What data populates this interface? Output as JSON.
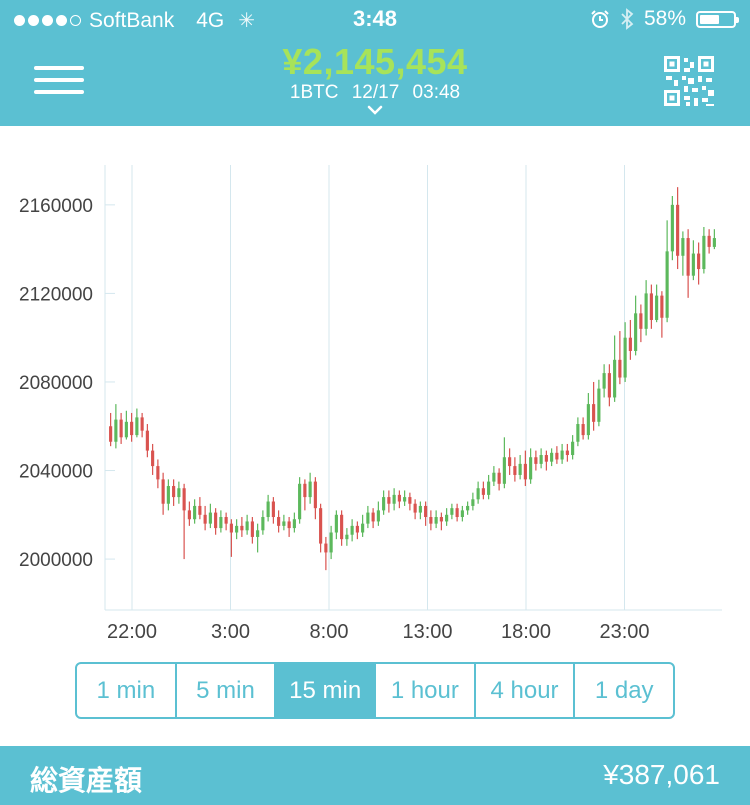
{
  "status_bar": {
    "carrier": "SoftBank",
    "network": "4G",
    "time": "3:48",
    "battery": "58%",
    "battery_level": 0.58
  },
  "header": {
    "price": "¥2,145,454",
    "unit": "1BTC",
    "datetime": "12/17 03:48",
    "colors": {
      "bar": "#5bc0d2",
      "price": "#a7e35a"
    }
  },
  "chart_data": {
    "type": "candlestick",
    "x_tick_labels": [
      "22:00",
      "3:00",
      "8:00",
      "13:00",
      "18:00",
      "23:00"
    ],
    "y_tick_labels": [
      "2000000",
      "2040000",
      "2080000",
      "2120000",
      "2160000"
    ],
    "ylim": [
      1977000,
      2178000
    ],
    "grid": "vertical",
    "up_color": "#5cb85c",
    "down_color": "#d9534f",
    "candles": [
      [
        2060000,
        2053000,
        2066000,
        2051000
      ],
      [
        2053000,
        2063000,
        2070000,
        2050000
      ],
      [
        2063000,
        2055000,
        2066000,
        2052000
      ],
      [
        2055000,
        2062000,
        2067000,
        2054000
      ],
      [
        2062000,
        2056000,
        2066000,
        2053000
      ],
      [
        2056000,
        2064000,
        2068000,
        2055000
      ],
      [
        2064000,
        2058000,
        2066000,
        2055000
      ],
      [
        2058000,
        2049000,
        2061000,
        2046000
      ],
      [
        2049000,
        2042000,
        2052000,
        2038000
      ],
      [
        2042000,
        2036000,
        2045000,
        2032000
      ],
      [
        2036000,
        2025000,
        2039000,
        2020000
      ],
      [
        2025000,
        2033000,
        2036000,
        2022000
      ],
      [
        2033000,
        2028000,
        2036000,
        2024000
      ],
      [
        2028000,
        2032000,
        2035000,
        2025000
      ],
      [
        2032000,
        2022000,
        2034000,
        2000000
      ],
      [
        2022000,
        2018000,
        2026000,
        2015000
      ],
      [
        2018000,
        2024000,
        2027000,
        2016000
      ],
      [
        2024000,
        2020000,
        2028000,
        2018000
      ],
      [
        2020000,
        2016000,
        2024000,
        2013000
      ],
      [
        2016000,
        2021000,
        2025000,
        2014000
      ],
      [
        2021000,
        2014000,
        2023000,
        2011000
      ],
      [
        2014000,
        2019000,
        2022000,
        2012000
      ],
      [
        2019000,
        2016000,
        2021000,
        2013000
      ],
      [
        2016000,
        2012000,
        2018000,
        2001000
      ],
      [
        2012000,
        2015000,
        2018000,
        2009000
      ],
      [
        2015000,
        2013000,
        2019000,
        2010000
      ],
      [
        2013000,
        2017000,
        2020000,
        2011000
      ],
      [
        2017000,
        2010000,
        2019000,
        2007000
      ],
      [
        2010000,
        2013000,
        2016000,
        2003000
      ],
      [
        2013000,
        2019000,
        2022000,
        2011000
      ],
      [
        2019000,
        2026000,
        2029000,
        2017000
      ],
      [
        2026000,
        2019000,
        2028000,
        2016000
      ],
      [
        2019000,
        2015000,
        2022000,
        2012000
      ],
      [
        2015000,
        2017000,
        2020000,
        2013000
      ],
      [
        2017000,
        2014000,
        2019000,
        2010000
      ],
      [
        2014000,
        2018000,
        2021000,
        2012000
      ],
      [
        2018000,
        2034000,
        2037000,
        2016000
      ],
      [
        2034000,
        2028000,
        2036000,
        2022000
      ],
      [
        2028000,
        2035000,
        2039000,
        2025000
      ],
      [
        2035000,
        2023000,
        2037000,
        2018000
      ],
      [
        2023000,
        2007000,
        2025000,
        2003000
      ],
      [
        2007000,
        2003000,
        2010000,
        1995000
      ],
      [
        2003000,
        2012000,
        2015000,
        2000000
      ],
      [
        2012000,
        2020000,
        2022000,
        2009000
      ],
      [
        2020000,
        2009000,
        2022000,
        2006000
      ],
      [
        2009000,
        2011000,
        2014000,
        2006000
      ],
      [
        2011000,
        2015000,
        2018000,
        2008000
      ],
      [
        2015000,
        2012000,
        2017000,
        2009000
      ],
      [
        2012000,
        2016000,
        2020000,
        2010000
      ],
      [
        2016000,
        2021000,
        2024000,
        2014000
      ],
      [
        2021000,
        2017000,
        2023000,
        2014000
      ],
      [
        2017000,
        2022000,
        2026000,
        2015000
      ],
      [
        2022000,
        2028000,
        2031000,
        2020000
      ],
      [
        2028000,
        2025000,
        2031000,
        2021000
      ],
      [
        2025000,
        2029000,
        2032000,
        2022000
      ],
      [
        2029000,
        2026000,
        2031000,
        2023000
      ],
      [
        2026000,
        2028000,
        2031000,
        2024000
      ],
      [
        2028000,
        2025000,
        2030000,
        2022000
      ],
      [
        2025000,
        2021000,
        2027000,
        2018000
      ],
      [
        2021000,
        2024000,
        2026000,
        2018000
      ],
      [
        2024000,
        2019000,
        2026000,
        2015000
      ],
      [
        2019000,
        2016000,
        2022000,
        2013000
      ],
      [
        2016000,
        2019000,
        2022000,
        2014000
      ],
      [
        2019000,
        2017000,
        2021000,
        2013000
      ],
      [
        2017000,
        2020000,
        2023000,
        2015000
      ],
      [
        2020000,
        2023000,
        2025000,
        2018000
      ],
      [
        2023000,
        2019000,
        2025000,
        2017000
      ],
      [
        2019000,
        2022000,
        2024000,
        2017000
      ],
      [
        2022000,
        2024000,
        2026000,
        2020000
      ],
      [
        2024000,
        2027000,
        2030000,
        2022000
      ],
      [
        2027000,
        2032000,
        2035000,
        2025000
      ],
      [
        2032000,
        2029000,
        2035000,
        2027000
      ],
      [
        2029000,
        2035000,
        2038000,
        2027000
      ],
      [
        2035000,
        2039000,
        2042000,
        2033000
      ],
      [
        2039000,
        2034000,
        2041000,
        2031000
      ],
      [
        2034000,
        2046000,
        2055000,
        2032000
      ],
      [
        2046000,
        2042000,
        2050000,
        2038000
      ],
      [
        2042000,
        2038000,
        2046000,
        2035000
      ],
      [
        2038000,
        2043000,
        2047000,
        2036000
      ],
      [
        2043000,
        2036000,
        2049000,
        2033000
      ],
      [
        2036000,
        2046000,
        2050000,
        2034000
      ],
      [
        2046000,
        2043000,
        2049000,
        2040000
      ],
      [
        2043000,
        2047000,
        2050000,
        2041000
      ],
      [
        2047000,
        2044000,
        2049000,
        2040000
      ],
      [
        2044000,
        2048000,
        2050000,
        2042000
      ],
      [
        2048000,
        2045000,
        2051000,
        2043000
      ],
      [
        2045000,
        2049000,
        2052000,
        2043000
      ],
      [
        2049000,
        2047000,
        2052000,
        2044000
      ],
      [
        2047000,
        2053000,
        2056000,
        2045000
      ],
      [
        2053000,
        2061000,
        2064000,
        2051000
      ],
      [
        2061000,
        2056000,
        2064000,
        2054000
      ],
      [
        2056000,
        2070000,
        2075000,
        2054000
      ],
      [
        2070000,
        2062000,
        2080000,
        2058000
      ],
      [
        2062000,
        2077000,
        2081000,
        2060000
      ],
      [
        2077000,
        2084000,
        2088000,
        2073000
      ],
      [
        2084000,
        2073000,
        2088000,
        2069000
      ],
      [
        2073000,
        2090000,
        2101000,
        2071000
      ],
      [
        2090000,
        2082000,
        2103000,
        2079000
      ],
      [
        2082000,
        2100000,
        2107000,
        2080000
      ],
      [
        2100000,
        2094000,
        2108000,
        2090000
      ],
      [
        2094000,
        2111000,
        2119000,
        2092000
      ],
      [
        2111000,
        2104000,
        2115000,
        2098000
      ],
      [
        2104000,
        2120000,
        2126000,
        2101000
      ],
      [
        2120000,
        2108000,
        2124000,
        2104000
      ],
      [
        2108000,
        2119000,
        2124000,
        2107000
      ],
      [
        2119000,
        2109000,
        2121000,
        2100000
      ],
      [
        2109000,
        2139000,
        2153000,
        2107000
      ],
      [
        2139000,
        2160000,
        2164000,
        2135000
      ],
      [
        2160000,
        2137000,
        2168000,
        2131000
      ],
      [
        2137000,
        2145000,
        2148000,
        2128000
      ],
      [
        2145000,
        2128000,
        2149000,
        2118000
      ],
      [
        2128000,
        2138000,
        2144000,
        2126000
      ],
      [
        2138000,
        2131000,
        2143000,
        2124000
      ],
      [
        2131000,
        2146000,
        2150000,
        2129000
      ],
      [
        2146000,
        2141000,
        2149000,
        2138000
      ],
      [
        2141000,
        2145000,
        2149000,
        2140000
      ]
    ]
  },
  "timeframes": {
    "items": [
      "1 min",
      "5 min",
      "15 min",
      "1 hour",
      "4 hour",
      "1 day"
    ],
    "active": "15 min"
  },
  "footer": {
    "label": "総資産額",
    "value": "¥387,061"
  }
}
